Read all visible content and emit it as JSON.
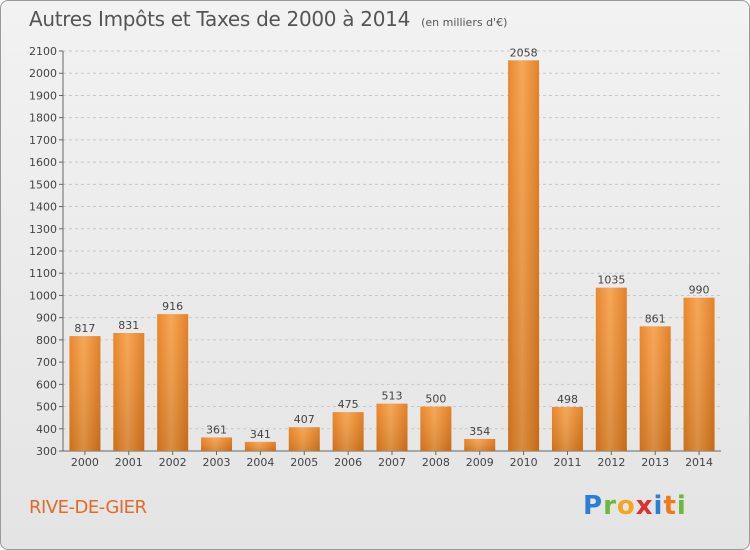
{
  "chart_data": {
    "type": "bar",
    "title": "Autres Impôts et Taxes de 2000 à 2014",
    "subtitle": "(en milliers d'€)",
    "categories": [
      "2000",
      "2001",
      "2002",
      "2003",
      "2004",
      "2005",
      "2006",
      "2007",
      "2008",
      "2009",
      "2010",
      "2011",
      "2012",
      "2013",
      "2014"
    ],
    "values": [
      817,
      831,
      916,
      361,
      341,
      407,
      475,
      513,
      500,
      354,
      2058,
      498,
      1035,
      861,
      990
    ],
    "ylim": [
      300,
      2100
    ],
    "yticks": [
      300,
      400,
      500,
      600,
      700,
      800,
      900,
      1000,
      1100,
      1200,
      1300,
      1400,
      1500,
      1600,
      1700,
      1800,
      1900,
      2000,
      2100
    ],
    "grid": true,
    "bar_color": "#f0922e"
  },
  "footer": {
    "place": "RIVE-DE-GIER",
    "logo": {
      "p": "P",
      "r": "r",
      "o": "o",
      "x": "x",
      "i1": "i",
      "t": "t",
      "i2": "i"
    }
  }
}
